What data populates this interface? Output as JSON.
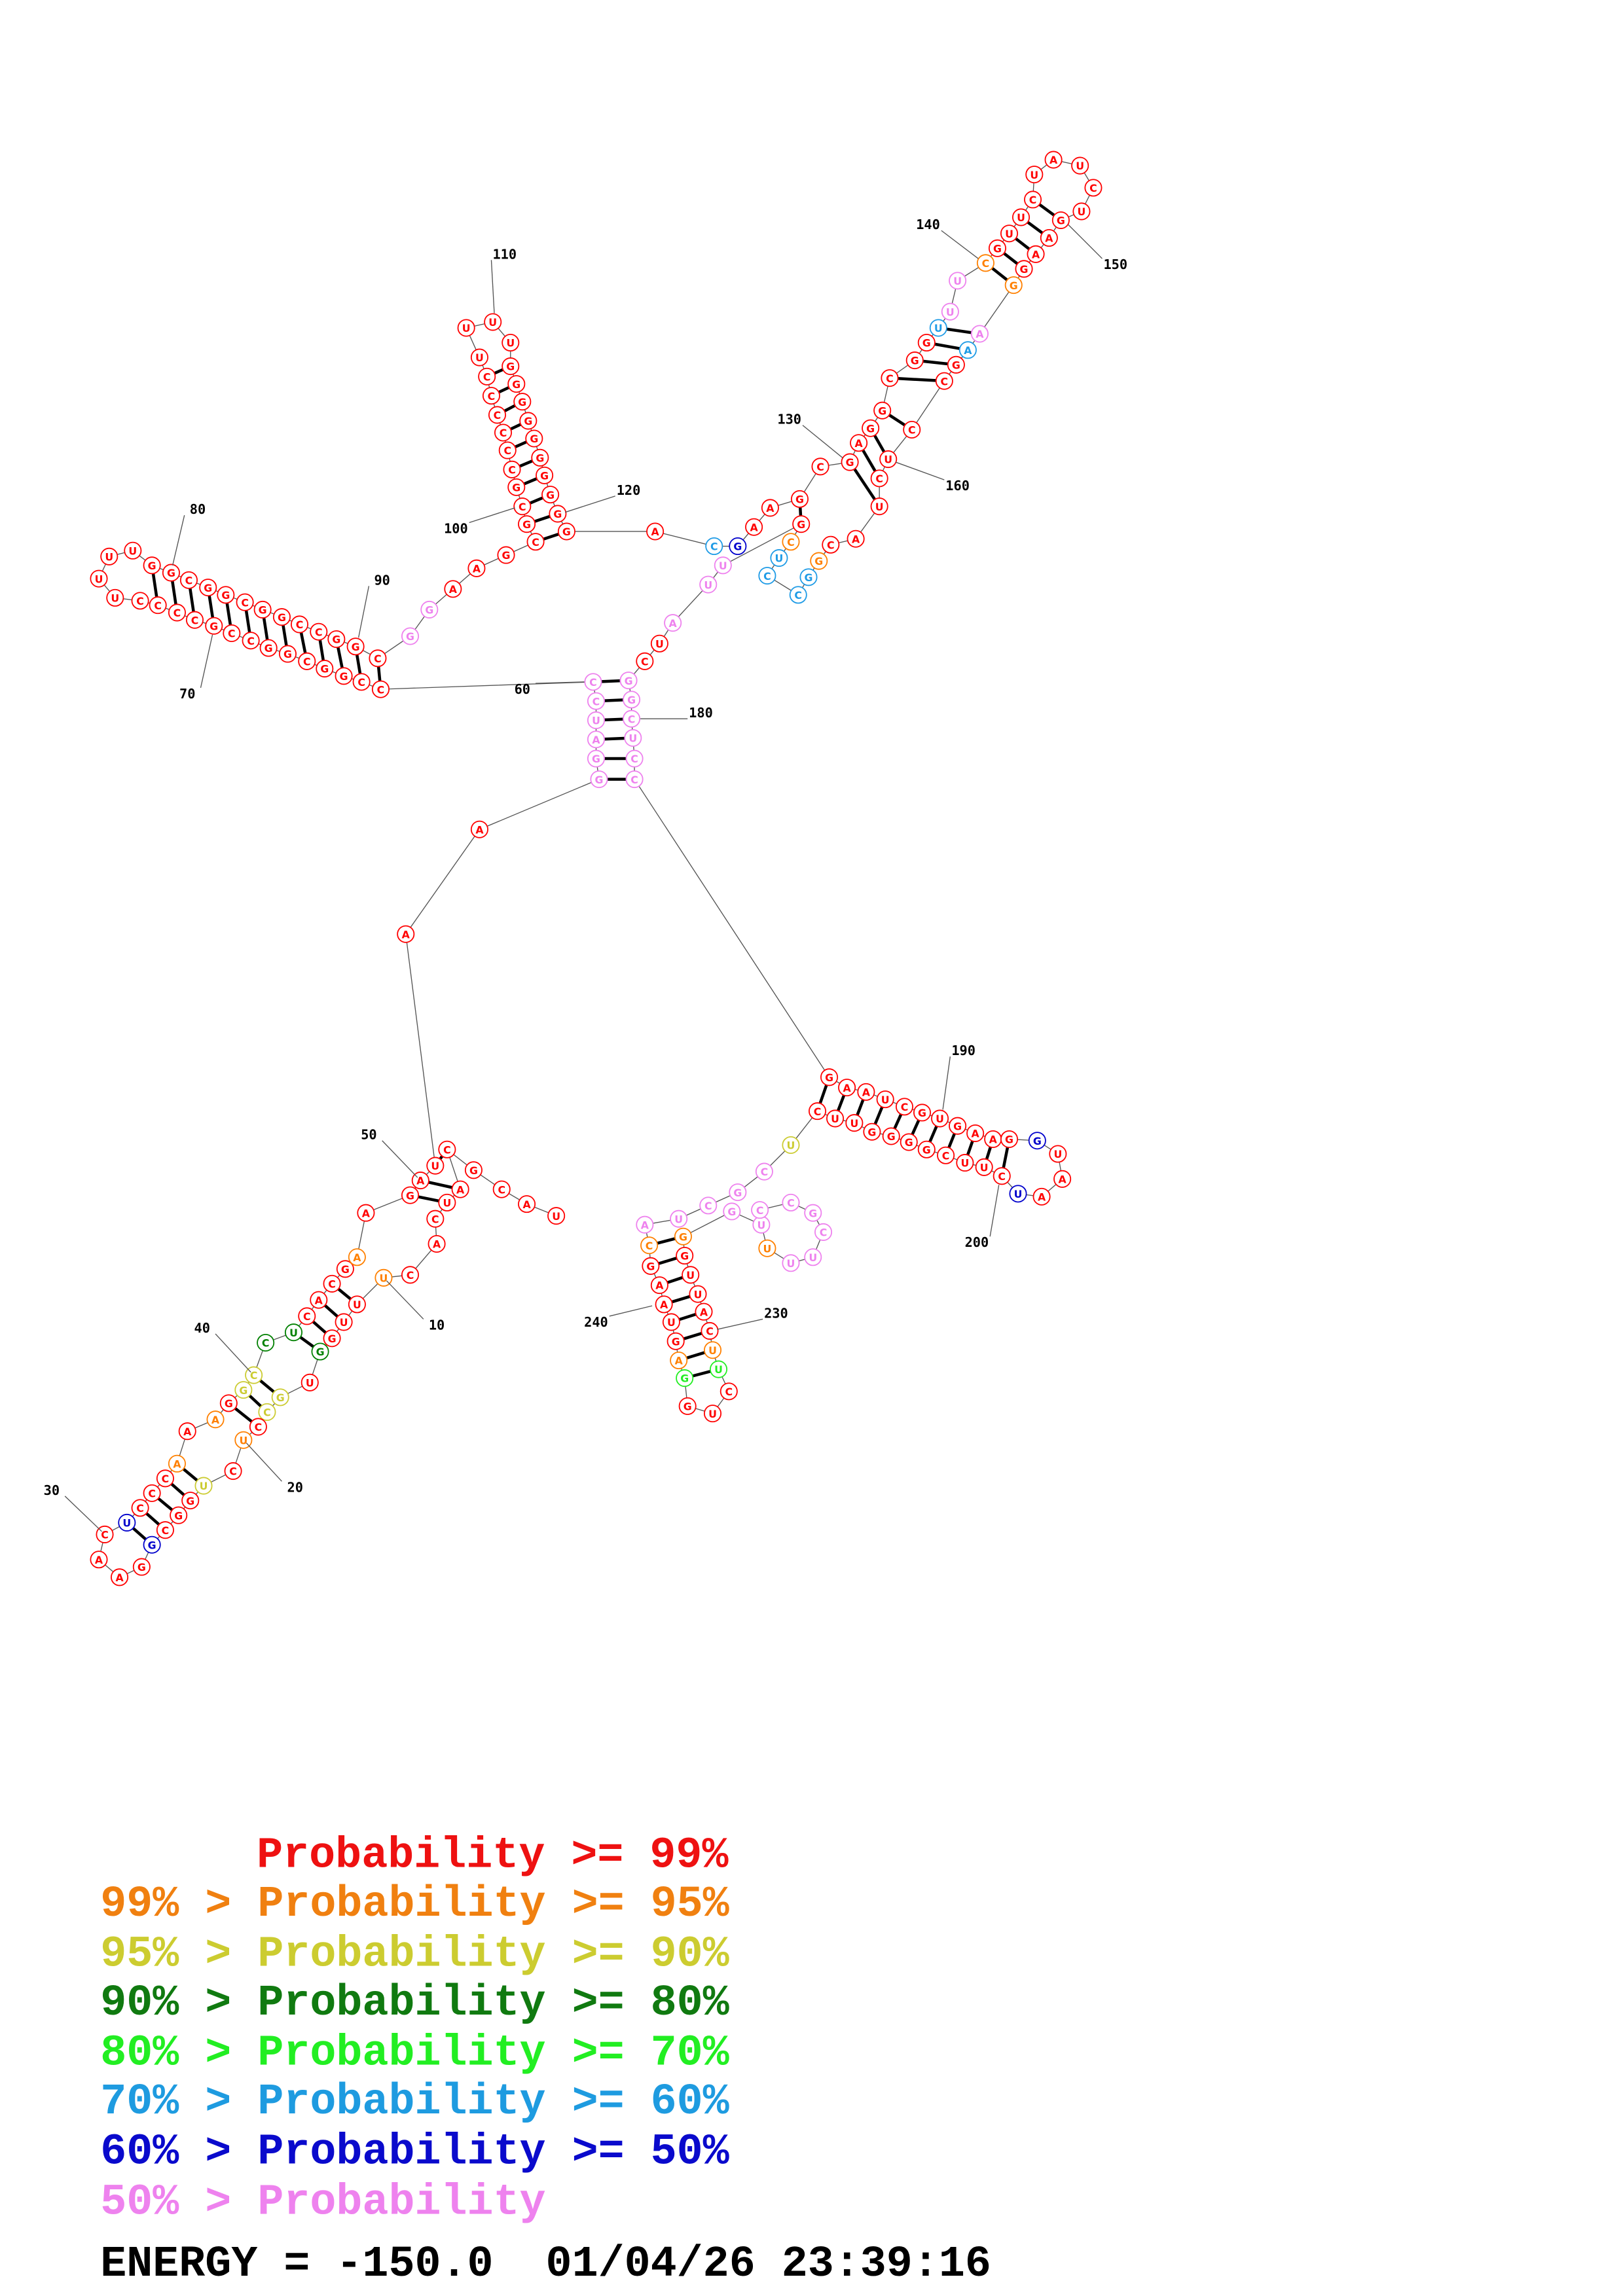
{
  "sequence": [
    "U",
    "A",
    "C",
    "G",
    "C",
    "A",
    "U",
    "C",
    "A",
    "C",
    "U",
    "U",
    "U",
    "G",
    "G",
    "U",
    "G",
    "C",
    "C",
    "U",
    "C",
    "U",
    "G",
    "G",
    "C",
    "G",
    "G",
    "A",
    "A",
    "C",
    "U",
    "C",
    "C",
    "C",
    "A",
    "A",
    "A",
    "G",
    "G",
    "C",
    "C",
    "U",
    "C",
    "A",
    "C",
    "G",
    "A",
    "A",
    "G",
    "A",
    "U",
    "A",
    "A",
    "G",
    "G",
    "A",
    "U",
    "C",
    "C",
    "C",
    "C",
    "G",
    "G",
    "C",
    "G",
    "G",
    "C",
    "C",
    "G",
    "C",
    "C",
    "C",
    "C",
    "U",
    "U",
    "U",
    "U",
    "G",
    "G",
    "C",
    "G",
    "G",
    "C",
    "G",
    "G",
    "C",
    "C",
    "G",
    "G",
    "C",
    "G",
    "G",
    "A",
    "A",
    "G",
    "C",
    "G",
    "C",
    "G",
    "C",
    "C",
    "C",
    "C",
    "C",
    "C",
    "U",
    "U",
    "U",
    "U",
    "G",
    "G",
    "G",
    "G",
    "G",
    "G",
    "G",
    "G",
    "G",
    "G",
    "A",
    "C",
    "G",
    "A",
    "A",
    "G",
    "C",
    "G",
    "A",
    "G",
    "G",
    "C",
    "G",
    "G",
    "U",
    "U",
    "U",
    "C",
    "G",
    "U",
    "U",
    "C",
    "U",
    "A",
    "U",
    "C",
    "U",
    "G",
    "A",
    "A",
    "G",
    "G",
    "A",
    "A",
    "G",
    "C",
    "C",
    "U",
    "C",
    "U",
    "A",
    "C",
    "G",
    "G",
    "C",
    "C",
    "U",
    "C",
    "G",
    "U",
    "U",
    "A",
    "U",
    "C",
    "G",
    "G",
    "C",
    "U",
    "C",
    "C",
    "G",
    "A",
    "A",
    "U",
    "C",
    "G",
    "U",
    "G",
    "A",
    "A",
    "G",
    "G",
    "U",
    "A",
    "A",
    "U",
    "C",
    "U",
    "U",
    "C",
    "G",
    "G",
    "G",
    "G",
    "U",
    "U",
    "C",
    "U",
    "C",
    "G",
    "C",
    "U",
    "A",
    "C",
    "G",
    "A",
    "A",
    "U",
    "G",
    "A",
    "G",
    "G",
    "U",
    "C",
    "U",
    "U",
    "C",
    "A",
    "U",
    "U",
    "G",
    "G",
    "G",
    "U",
    "U",
    "U",
    "U",
    "C",
    "G",
    "C",
    "C"
  ],
  "colors": [
    "#ff0000",
    "#ff0000",
    "#ff0000",
    "#ff0000",
    "#ff0000",
    "#ff0000",
    "#ff0000",
    "#ff0000",
    "#ff0000",
    "#ff0000",
    "#ff8000",
    "#ff0000",
    "#ff0000",
    "#ff0000",
    "#008000",
    "#ff0000",
    "#cccc33",
    "#cccc33",
    "#ff0000",
    "#ff8000",
    "#ff0000",
    "#cccc33",
    "#ff0000",
    "#ff0000",
    "#ff0000",
    "#0000cc",
    "#ff0000",
    "#ff0000",
    "#ff0000",
    "#ff0000",
    "#0000cc",
    "#ff0000",
    "#ff0000",
    "#ff0000",
    "#ff8000",
    "#ff0000",
    "#ff8000",
    "#ff0000",
    "#cccc33",
    "#cccc33",
    "#008000",
    "#008000",
    "#ff0000",
    "#ff0000",
    "#ff0000",
    "#ff0000",
    "#ff8000",
    "#ff0000",
    "#ff0000",
    "#ff0000",
    "#ff0000",
    "#ff0000",
    "#ff0000",
    "#ee82ee",
    "#ee82ee",
    "#ee82ee",
    "#ee82ee",
    "#ee82ee",
    "#ee82ee",
    "#ff0000",
    "#ff0000",
    "#ff0000",
    "#ff0000",
    "#ff0000",
    "#ff0000",
    "#ff0000",
    "#ff0000",
    "#ff0000",
    "#ff0000",
    "#ff0000",
    "#ff0000",
    "#ff0000",
    "#ff0000",
    "#ff0000",
    "#ff0000",
    "#ff0000",
    "#ff0000",
    "#ff0000",
    "#ff0000",
    "#ff0000",
    "#ff0000",
    "#ff0000",
    "#ff0000",
    "#ff0000",
    "#ff0000",
    "#ff0000",
    "#ff0000",
    "#ff0000",
    "#ff0000",
    "#ff0000",
    "#ee82ee",
    "#ee82ee",
    "#ff0000",
    "#ff0000",
    "#ff0000",
    "#ff0000",
    "#ff0000",
    "#ff0000",
    "#ff0000",
    "#ff0000",
    "#ff0000",
    "#ff0000",
    "#ff0000",
    "#ff0000",
    "#ff0000",
    "#ff0000",
    "#ff0000",
    "#ff0000",
    "#ff0000",
    "#ff0000",
    "#ff0000",
    "#ff0000",
    "#ff0000",
    "#ff0000",
    "#ff0000",
    "#ff0000",
    "#ff0000",
    "#ff0000",
    "#ff0000",
    "#ff0000",
    "#1e9be6",
    "#0000cc",
    "#ff0000",
    "#ff0000",
    "#ff0000",
    "#ff0000",
    "#ff0000",
    "#ff0000",
    "#ff0000",
    "#ff0000",
    "#ff0000",
    "#ff0000",
    "#ff0000",
    "#1e9be6",
    "#ee82ee",
    "#ee82ee",
    "#ff8000",
    "#ff0000",
    "#ff0000",
    "#ff0000",
    "#ff0000",
    "#ff0000",
    "#ff0000",
    "#ff0000",
    "#ff0000",
    "#ff0000",
    "#ff0000",
    "#ff0000",
    "#ff0000",
    "#ff0000",
    "#ff8000",
    "#ee82ee",
    "#1e9be6",
    "#ff0000",
    "#ff0000",
    "#ff0000",
    "#ff0000",
    "#ff0000",
    "#ff0000",
    "#ff0000",
    "#ff0000",
    "#ff8000",
    "#1e9be6",
    "#1e9be6",
    "#1e9be6",
    "#1e9be6",
    "#ff8000",
    "#ff0000",
    "#ee82ee",
    "#ee82ee",
    "#ee82ee",
    "#ff0000",
    "#ff0000",
    "#ee82ee",
    "#ee82ee",
    "#ee82ee",
    "#ee82ee",
    "#ee82ee",
    "#ee82ee",
    "#ff0000",
    "#ff0000",
    "#ff0000",
    "#ff0000",
    "#ff0000",
    "#ff0000",
    "#ff0000",
    "#ff0000",
    "#ff0000",
    "#ff0000",
    "#ff0000",
    "#0000cc",
    "#ff0000",
    "#ff0000",
    "#ff0000",
    "#0000cc",
    "#ff0000",
    "#ff0000",
    "#ff0000",
    "#ff0000",
    "#ff0000",
    "#ff0000",
    "#ff0000",
    "#ff0000",
    "#ff0000",
    "#ff0000",
    "#ff0000",
    "#cccc33",
    "#ee82ee",
    "#ee82ee",
    "#ee82ee",
    "#ee82ee",
    "#ee82ee",
    "#ff8000",
    "#ff0000",
    "#ff0000",
    "#ff0000",
    "#ff0000",
    "#ff0000",
    "#ff8000",
    "#22ee22",
    "#ff0000",
    "#ff0000",
    "#ff0000",
    "#22ee22",
    "#ff8000",
    "#ff0000",
    "#ff0000",
    "#ff0000",
    "#ff0000",
    "#ff0000",
    "#ff8000",
    "#ee82ee",
    "#ee82ee",
    "#ff8000",
    "#ee82ee",
    "#ee82ee",
    "#ee82ee",
    "#ee82ee",
    "#ee82ee",
    "#ee82ee"
  ],
  "numbering": [
    10,
    20,
    30,
    40,
    50,
    60,
    70,
    80,
    90,
    100,
    110,
    120,
    130,
    140,
    150,
    160,
    180,
    190,
    200,
    230,
    240
  ],
  "legend": [
    {
      "label": "Probability >= 99%",
      "color": "#ee1111"
    },
    {
      "label": "99% > Probability >= 95%",
      "color": "#f08010"
    },
    {
      "label": "95% > Probability >= 90%",
      "color": "#cccc30"
    },
    {
      "label": "90% > Probability >= 80%",
      "color": "#107a10"
    },
    {
      "label": "80% > Probability >= 70%",
      "color": "#22ee22"
    },
    {
      "label": "70% > Probability >= 60%",
      "color": "#1e9be0"
    },
    {
      "label": "60% > Probability >= 50%",
      "color": "#0a0acc"
    },
    {
      "label": "50% > Probability",
      "color": "#ee82ee"
    }
  ],
  "energy_line": "ENERGY = -150.0  01/04/26 23:39:16"
}
